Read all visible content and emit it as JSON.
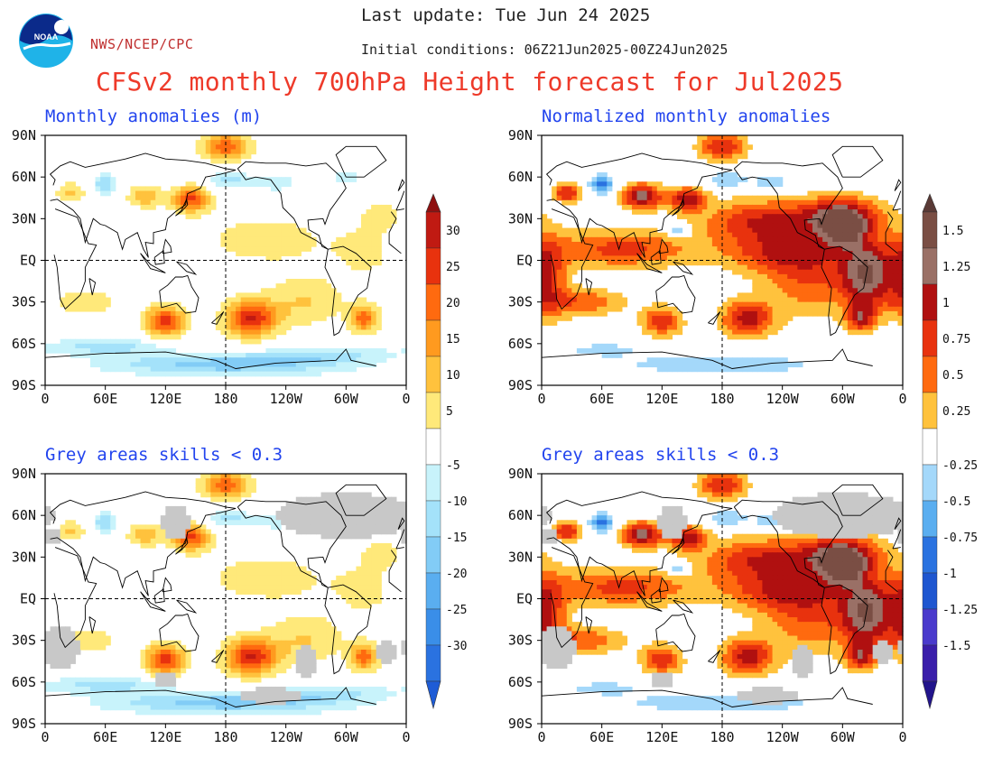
{
  "header": {
    "last_update": "Last update: Tue Jun 24 2025",
    "org": "NWS/NCEP/CPC",
    "initial_conditions": "Initial conditions: 06Z21Jun2025-00Z24Jun2025",
    "title": "CFSv2 monthly 700hPa Height forecast for Jul2025",
    "logo_text": "NOAA"
  },
  "panels": [
    {
      "title": "Monthly anomalies (m)"
    },
    {
      "title": "Normalized monthly anomalies"
    },
    {
      "title": "Grey areas skills < 0.3"
    },
    {
      "title": "Grey areas skills < 0.3"
    }
  ],
  "axes": {
    "lat_labels": [
      "90N",
      "60N",
      "30N",
      "EQ",
      "30S",
      "60S",
      "90S"
    ],
    "lon_labels": [
      "0",
      "60E",
      "120E",
      "180",
      "120W",
      "60W",
      "0"
    ]
  },
  "colorbars": {
    "left": {
      "labels": [
        "30",
        "25",
        "20",
        "15",
        "10",
        "5",
        "-5",
        "-10",
        "-15",
        "-20",
        "-25",
        "-30"
      ],
      "pos_colors": [
        "#ffe97a",
        "#ffc23d",
        "#ff9a1f",
        "#ff6a0f",
        "#e8320e",
        "#c01a12",
        "#8e1010"
      ],
      "neg_colors": [
        "#c8f3fb",
        "#a4e2fa",
        "#82ccf6",
        "#5aaef0",
        "#3a8ee8",
        "#2a72e0",
        "#1e5cd6"
      ]
    },
    "right": {
      "labels": [
        "1.5",
        "1.25",
        "1",
        "0.75",
        "0.5",
        "0.25",
        "-0.25",
        "-0.5",
        "-0.75",
        "-1",
        "-1.25",
        "-1.5"
      ],
      "pos_colors": [
        "#ffc23d",
        "#ff6a0f",
        "#e8320e",
        "#b01010",
        "#9a7066",
        "#7a4e44",
        "#5a3a36"
      ],
      "neg_colors": [
        "#a4d8fa",
        "#5aaef0",
        "#2a72e0",
        "#1e56d0",
        "#4a3acc",
        "#3a1eaa",
        "#22148c"
      ]
    }
  },
  "legend_colors": {
    "grey_low_skill": "#c8c8c8",
    "coast": "#000000",
    "grid": "#000000"
  },
  "fields": {
    "height_anom_m": [
      {
        "lon": 180,
        "lat": 82,
        "v": 22
      },
      {
        "lon": 145,
        "lat": 44,
        "v": 26
      },
      {
        "lon": 60,
        "lat": 55,
        "v": -15
      },
      {
        "lon": 185,
        "lat": 58,
        "v": -12
      },
      {
        "lon": 230,
        "lat": 55,
        "v": -10
      },
      {
        "lon": 120,
        "lat": -44,
        "v": 28
      },
      {
        "lon": 205,
        "lat": -42,
        "v": 30
      },
      {
        "lon": 318,
        "lat": -42,
        "v": 22
      },
      {
        "lon": 180,
        "lat": -75,
        "v": -18
      }
    ]
  }
}
